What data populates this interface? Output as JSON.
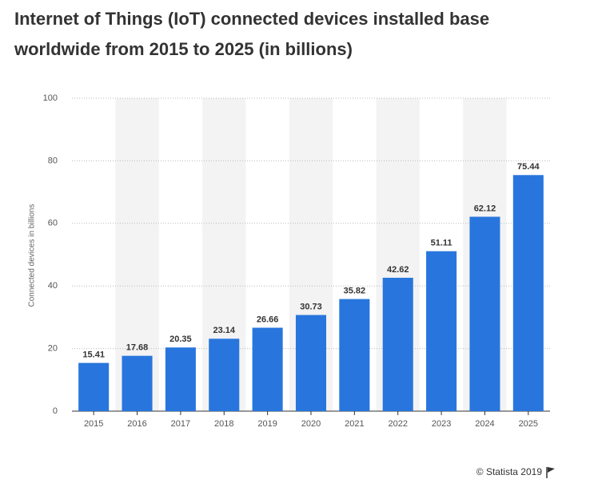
{
  "chart_data": {
    "type": "bar",
    "title": [
      "Internet of Things (IoT) connected devices installed base",
      "worldwide from 2015 to 2025 (in billions)"
    ],
    "y_label": "Connected devices in billions",
    "categories": [
      "2015",
      "2016",
      "2017",
      "2018",
      "2019",
      "2020",
      "2021",
      "2022",
      "2023",
      "2024",
      "2025"
    ],
    "values": [
      15.41,
      17.68,
      20.35,
      23.14,
      26.66,
      30.73,
      35.82,
      42.62,
      51.11,
      62.12,
      75.44
    ],
    "color": "#2876dd",
    "ylim": [
      0,
      100
    ],
    "yticks": [
      0,
      20,
      40,
      60,
      80,
      100
    ],
    "grid": true,
    "source": "© Statista 2019"
  }
}
